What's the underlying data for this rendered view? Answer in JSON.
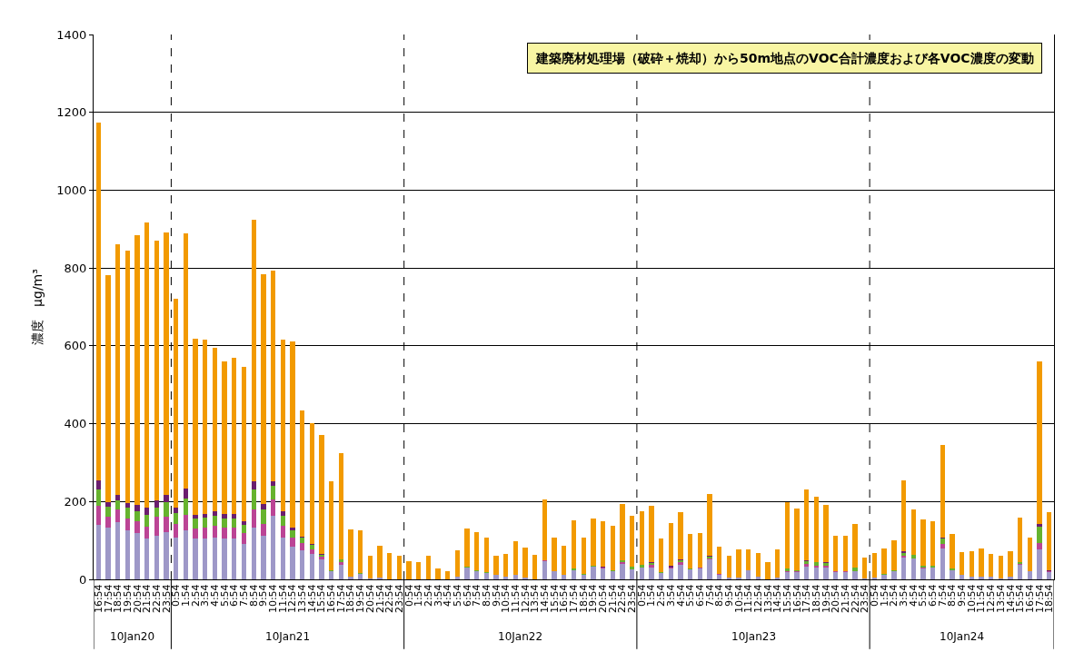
{
  "chart_data": {
    "type": "bar",
    "stacked": true,
    "annotations": [
      "建築廃材処理場（破砕＋焼却）から50m地点のVOC合計濃度および各VOC濃度の変動",
      "10Jan20",
      "10Jan21",
      "10Jan22",
      "10Jan23",
      "10Jan24"
    ],
    "ylabel": "濃度　μg/m³",
    "categories": [
      "16:54",
      "17:54",
      "18:54",
      "19:54",
      "20:54",
      "21:54",
      "22:54",
      "23:54",
      "0:54",
      "1:54",
      "2:54",
      "3:54",
      "4:54",
      "5:54",
      "6:54",
      "7:54",
      "8:54",
      "9:54",
      "10:54",
      "11:54",
      "12:54",
      "13:54",
      "14:54",
      "15:54",
      "16:54",
      "17:54",
      "18:54",
      "19:54",
      "20:54",
      "21:54",
      "22:54",
      "23:54",
      "0:54",
      "1:54",
      "2:54",
      "3:54",
      "4:54",
      "5:54",
      "6:54",
      "7:54",
      "8:54",
      "9:54",
      "10:54",
      "11:54",
      "12:54",
      "13:54",
      "14:54",
      "15:54",
      "16:54",
      "17:54",
      "18:54",
      "19:54",
      "20:54",
      "21:54",
      "22:54",
      "23:54",
      "0:54",
      "1:54",
      "2:54",
      "3:54",
      "4:54",
      "5:54",
      "6:54",
      "7:54",
      "8:54",
      "9:54",
      "10:54",
      "11:54",
      "12:54",
      "13:54",
      "14:54",
      "15:54",
      "16:54",
      "17:54",
      "18:54",
      "19:54",
      "20:54",
      "21:54",
      "22:54",
      "23:54",
      "0:54",
      "1:54",
      "2:54",
      "3:54",
      "4:54",
      "5:54",
      "6:54",
      "7:54",
      "8:54",
      "9:54",
      "10:54",
      "11:54",
      "12:54",
      "13:54",
      "14:54",
      "15:54",
      "16:54",
      "17:54",
      "18:54"
    ],
    "series": [
      {
        "color": "#9e98c8",
        "values": [
          140,
          132,
          148,
          127,
          118,
          104,
          113,
          122,
          107,
          125,
          104,
          104,
          108,
          104,
          104,
          92,
          133,
          111,
          163,
          108,
          83,
          74,
          65,
          51,
          20,
          37,
          6,
          14,
          2,
          4,
          0,
          0,
          0,
          0,
          0,
          0,
          0,
          6,
          31,
          20,
          16,
          12,
          8,
          12,
          5,
          0,
          47,
          20,
          12,
          23,
          12,
          32,
          27,
          20,
          40,
          26,
          30,
          31,
          16,
          27,
          38,
          25,
          29,
          51,
          12,
          5,
          5,
          23,
          6,
          0,
          4,
          18,
          18,
          33,
          30,
          30,
          18,
          19,
          21,
          3,
          5,
          11,
          20,
          57,
          54,
          27,
          31,
          80,
          24,
          11,
          8,
          6,
          8,
          3,
          8,
          37,
          22,
          76,
          18
        ]
      },
      {
        "color": "#bb4495",
        "values": [
          49,
          29,
          32,
          29,
          32,
          32,
          49,
          39,
          35,
          41,
          27,
          29,
          30,
          29,
          29,
          26,
          47,
          31,
          42,
          30,
          25,
          20,
          12,
          7,
          0,
          8,
          0,
          0,
          0,
          0,
          0,
          0,
          0,
          0,
          0,
          0,
          0,
          0,
          0,
          0,
          0,
          0,
          0,
          0,
          0,
          0,
          3,
          0,
          0,
          0,
          0,
          0,
          3,
          0,
          4,
          0,
          0,
          6,
          0,
          4,
          6,
          0,
          2,
          3,
          3,
          0,
          0,
          0,
          0,
          0,
          0,
          4,
          2,
          6,
          6,
          5,
          2,
          3,
          0,
          0,
          0,
          0,
          0,
          4,
          0,
          4,
          0,
          12,
          0,
          0,
          0,
          0,
          0,
          0,
          0,
          3,
          0,
          18,
          4
        ]
      },
      {
        "color": "#66b32e",
        "values": [
          43,
          26,
          22,
          29,
          25,
          30,
          22,
          37,
          28,
          41,
          25,
          25,
          25,
          23,
          23,
          22,
          50,
          38,
          36,
          25,
          19,
          13,
          11,
          4,
          4,
          6,
          0,
          3,
          0,
          0,
          0,
          0,
          0,
          0,
          0,
          0,
          0,
          0,
          2,
          3,
          2,
          0,
          0,
          0,
          0,
          0,
          0,
          0,
          0,
          4,
          3,
          3,
          0,
          3,
          4,
          6,
          7,
          4,
          3,
          0,
          5,
          2,
          0,
          4,
          0,
          0,
          0,
          0,
          0,
          0,
          0,
          5,
          3,
          8,
          8,
          6,
          0,
          0,
          10,
          0,
          0,
          3,
          3,
          7,
          8,
          5,
          5,
          12,
          3,
          0,
          0,
          0,
          0,
          0,
          0,
          4,
          0,
          41,
          0
        ]
      },
      {
        "color": "#6b1e6e",
        "values": [
          23,
          11,
          14,
          12,
          16,
          18,
          18,
          18,
          14,
          26,
          10,
          10,
          12,
          12,
          12,
          10,
          23,
          14,
          12,
          12,
          6,
          3,
          3,
          3,
          0,
          0,
          0,
          0,
          0,
          0,
          0,
          0,
          0,
          0,
          0,
          0,
          0,
          0,
          0,
          0,
          0,
          0,
          0,
          0,
          0,
          0,
          0,
          0,
          0,
          0,
          0,
          0,
          2,
          0,
          0,
          0,
          0,
          3,
          0,
          4,
          2,
          0,
          0,
          3,
          0,
          0,
          0,
          0,
          0,
          0,
          0,
          0,
          0,
          3,
          0,
          3,
          0,
          0,
          0,
          0,
          0,
          0,
          0,
          4,
          0,
          0,
          0,
          4,
          0,
          0,
          0,
          0,
          0,
          0,
          0,
          0,
          0,
          7,
          2
        ]
      },
      {
        "color": "#f29a00",
        "values": [
          918,
          583,
          645,
          648,
          693,
          734,
          668,
          675,
          538,
          656,
          453,
          449,
          419,
          392,
          401,
          396,
          670,
          590,
          541,
          442,
          479,
          325,
          311,
          305,
          229,
          273,
          122,
          110,
          58,
          82,
          68,
          60,
          46,
          44,
          60,
          27,
          20,
          69,
          98,
          98,
          89,
          49,
          58,
          87,
          76,
          64,
          155,
          88,
          75,
          125,
          93,
          121,
          117,
          115,
          145,
          131,
          137,
          144,
          85,
          110,
          121,
          90,
          88,
          159,
          68,
          55,
          73,
          55,
          62,
          45,
          74,
          172,
          158,
          182,
          168,
          147,
          92,
          90,
          111,
          54,
          63,
          66,
          78,
          183,
          117,
          118,
          113,
          237,
          90,
          60,
          65,
          74,
          58,
          58,
          65,
          114,
          86,
          418,
          148
        ]
      }
    ],
    "ylim": [
      0,
      1400
    ],
    "yticks": [
      0,
      200,
      400,
      600,
      800,
      1000,
      1200,
      1400
    ],
    "grid": "y"
  }
}
